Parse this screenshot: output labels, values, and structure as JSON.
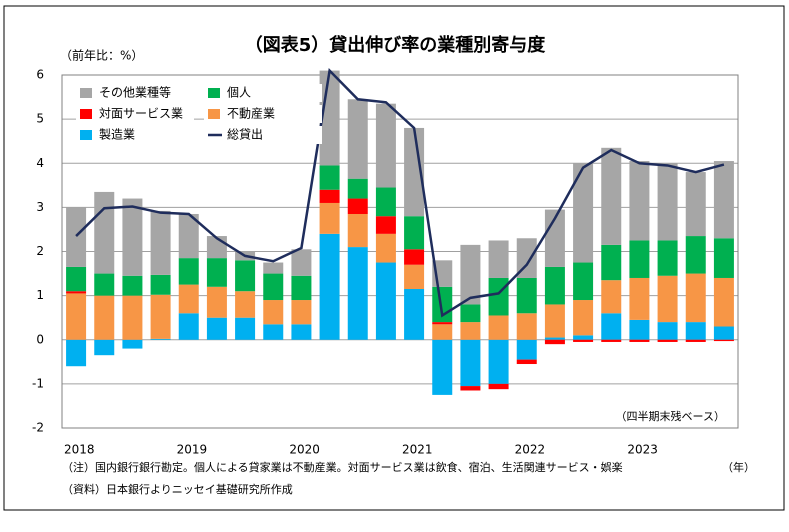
{
  "chart_data": {
    "type": "bar",
    "stacked": true,
    "title": "（図表5）貸出伸び率の業種別寄与度",
    "y_label": "（前年比：%）",
    "x_label": "（年）",
    "annotation": "（四半期末残ベース）",
    "notes": [
      "（注）国内銀行銀行勘定。個人による貸家業は不動産業。対面サービス業は飲食、宿泊、生活関連サービス・娯楽",
      "（資料）日本銀行よりニッセイ基礎研究所作成"
    ],
    "categories": [
      "2018",
      null,
      null,
      null,
      "2019",
      null,
      null,
      null,
      "2020",
      null,
      null,
      null,
      "2021",
      null,
      null,
      null,
      "2022",
      null,
      null,
      null,
      "2023",
      null,
      null,
      null
    ],
    "series": [
      {
        "name": "製造業",
        "color": "#00b0f0",
        "values": [
          -0.6,
          -0.35,
          -0.2,
          0.02,
          0.6,
          0.5,
          0.5,
          0.35,
          0.35,
          2.4,
          2.1,
          1.75,
          1.15,
          -1.25,
          -1.05,
          -1.0,
          -0.45,
          0.05,
          0.1,
          0.6,
          0.45,
          0.4,
          0.4,
          0.3
        ]
      },
      {
        "name": "不動産業",
        "color": "#f79646",
        "values": [
          1.05,
          1.0,
          1.0,
          1.0,
          0.65,
          0.7,
          0.6,
          0.55,
          0.55,
          0.7,
          0.75,
          0.65,
          0.55,
          0.35,
          0.4,
          0.55,
          0.6,
          0.75,
          0.8,
          0.75,
          0.95,
          1.05,
          1.1,
          1.1
        ]
      },
      {
        "name": "対面サービス業",
        "color": "#ff0000",
        "values": [
          0.05,
          0,
          0,
          0,
          0,
          0,
          0,
          0,
          0,
          0.3,
          0.35,
          0.4,
          0.35,
          0.05,
          -0.1,
          -0.12,
          -0.1,
          -0.1,
          -0.05,
          -0.05,
          -0.05,
          -0.05,
          -0.05,
          -0.03
        ]
      },
      {
        "name": "個人",
        "color": "#00b050",
        "values": [
          0.55,
          0.5,
          0.45,
          0.45,
          0.6,
          0.65,
          0.7,
          0.6,
          0.55,
          0.55,
          0.45,
          0.65,
          0.75,
          0.8,
          0.4,
          0.85,
          0.8,
          0.85,
          0.85,
          0.8,
          0.85,
          0.8,
          0.85,
          0.9
        ]
      },
      {
        "name": "その他業種等",
        "color": "#a6a6a6",
        "values": [
          1.35,
          1.85,
          1.75,
          1.45,
          1.0,
          0.5,
          0.2,
          0.25,
          0.6,
          2.15,
          1.8,
          1.9,
          2.0,
          0.6,
          1.35,
          0.85,
          0.9,
          1.3,
          2.25,
          2.2,
          1.8,
          1.75,
          1.45,
          1.75
        ]
      },
      {
        "name": "総貸出",
        "color": "#1f2d5c",
        "type": "line",
        "values": [
          2.35,
          2.98,
          3.02,
          2.88,
          2.85,
          2.3,
          1.9,
          1.78,
          2.08,
          6.1,
          5.45,
          5.38,
          4.8,
          0.55,
          0.95,
          1.05,
          1.7,
          2.75,
          3.9,
          4.3,
          4.0,
          3.95,
          3.8,
          3.97
        ]
      }
    ],
    "ylim": [
      -2,
      6
    ],
    "yticks": [
      -2,
      -1,
      0,
      1,
      2,
      3,
      4,
      5,
      6
    ],
    "grid": true
  }
}
